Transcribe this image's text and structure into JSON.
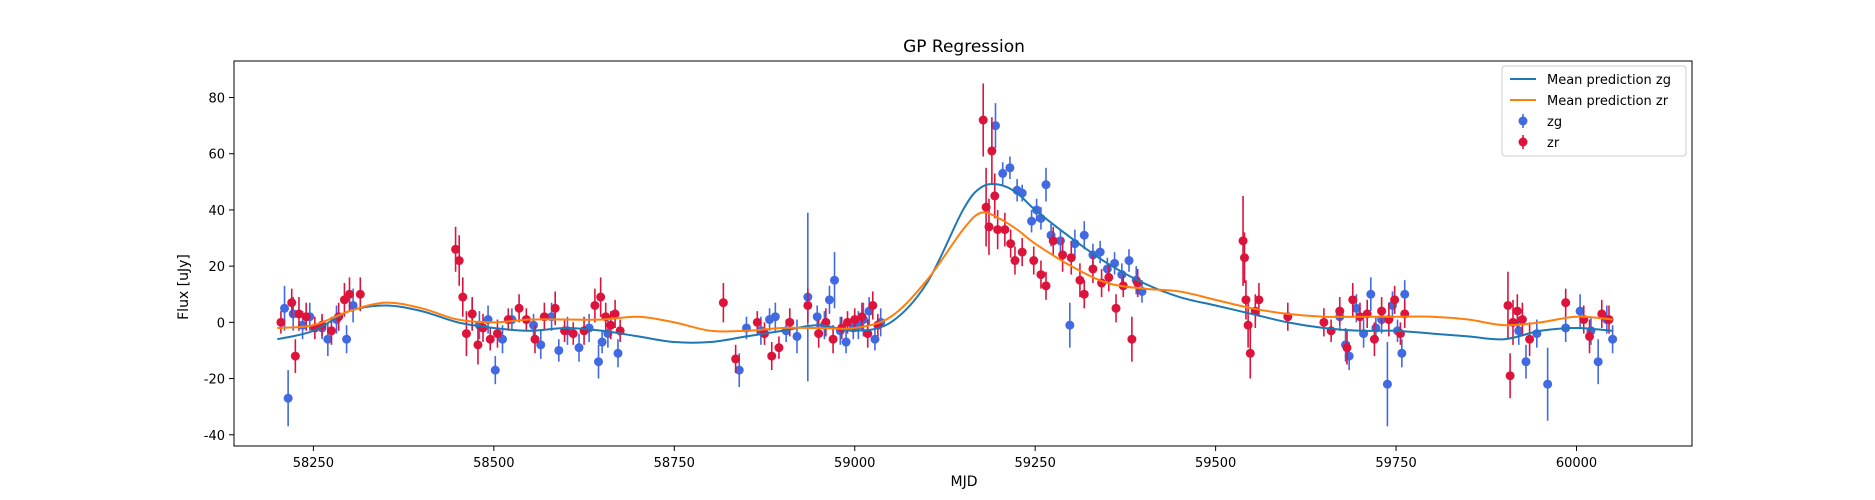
{
  "chart_data": {
    "type": "scatter",
    "title": "GP Regression",
    "xlabel": "MJD",
    "ylabel": "Flux [uJy]",
    "xlim": [
      58140,
      60160
    ],
    "ylim": [
      -44,
      93
    ],
    "xticks": [
      58250,
      58500,
      58750,
      59000,
      59250,
      59500,
      59750,
      60000
    ],
    "yticks": [
      -40,
      -20,
      0,
      20,
      40,
      60,
      80
    ],
    "grid": false,
    "legend_position": "top-right",
    "series": [
      {
        "name": "Mean prediction zg",
        "kind": "line",
        "color": "#1f77b4",
        "x": [
          58200,
          58250,
          58300,
          58350,
          58400,
          58450,
          58500,
          58550,
          58600,
          58650,
          58700,
          58750,
          58800,
          58850,
          58900,
          58950,
          59000,
          59050,
          59100,
          59150,
          59175,
          59200,
          59225,
          59250,
          59300,
          59350,
          59400,
          59450,
          59500,
          59550,
          59600,
          59650,
          59700,
          59750,
          59800,
          59850,
          59900,
          59950,
          60000,
          60050
        ],
        "y": [
          -6,
          -3,
          4,
          6,
          4,
          0,
          -2,
          -3,
          -2,
          -3,
          -5,
          -7,
          -7,
          -5,
          -3,
          -1,
          -3,
          0,
          14,
          40,
          48,
          49,
          46,
          40,
          30,
          21,
          14,
          9,
          6,
          3,
          0,
          -2,
          -3,
          -3,
          -4,
          -5,
          -6,
          -3,
          -2,
          -3
        ]
      },
      {
        "name": "Mean prediction zr",
        "kind": "line",
        "color": "#ff7f0e",
        "x": [
          58200,
          58250,
          58300,
          58350,
          58400,
          58450,
          58500,
          58550,
          58600,
          58650,
          58700,
          58750,
          58800,
          58850,
          58900,
          58950,
          59000,
          59050,
          59100,
          59150,
          59175,
          59200,
          59225,
          59250,
          59300,
          59350,
          59400,
          59450,
          59500,
          59550,
          59600,
          59650,
          59700,
          59750,
          59800,
          59850,
          59900,
          59950,
          60000,
          60050
        ],
        "y": [
          -2,
          -1,
          4,
          7,
          5,
          1,
          0,
          1,
          1,
          1,
          2,
          0,
          -3,
          -3,
          -2,
          -2,
          -2,
          2,
          15,
          33,
          39,
          37,
          33,
          28,
          20,
          14,
          12,
          11,
          8,
          5,
          3,
          2,
          2,
          2,
          2,
          1,
          -1,
          0,
          2,
          1
        ]
      },
      {
        "name": "zg",
        "kind": "errorbar",
        "color": "#4169e1",
        "points": [
          [
            58210,
            5,
            8
          ],
          [
            58215,
            -27,
            10
          ],
          [
            58222,
            3,
            6
          ],
          [
            58235,
            -1,
            5
          ],
          [
            58245,
            2,
            5
          ],
          [
            58262,
            -2,
            4
          ],
          [
            58270,
            -6,
            6
          ],
          [
            58282,
            1,
            5
          ],
          [
            58296,
            -6,
            5
          ],
          [
            58305,
            6,
            6
          ],
          [
            58470,
            3,
            5
          ],
          [
            58480,
            -1,
            5
          ],
          [
            58492,
            1,
            5
          ],
          [
            58502,
            -17,
            5
          ],
          [
            58512,
            -6,
            5
          ],
          [
            58525,
            1,
            4
          ],
          [
            58555,
            -1,
            4
          ],
          [
            58565,
            -8,
            5
          ],
          [
            58580,
            2,
            5
          ],
          [
            58590,
            -10,
            4
          ],
          [
            58602,
            -3,
            5
          ],
          [
            58618,
            -9,
            5
          ],
          [
            58632,
            -2,
            5
          ],
          [
            58645,
            -14,
            6
          ],
          [
            58650,
            -7,
            4
          ],
          [
            58658,
            -4,
            5
          ],
          [
            58672,
            -11,
            5
          ],
          [
            58840,
            -17,
            6
          ],
          [
            58850,
            -2,
            4
          ],
          [
            58870,
            -3,
            5
          ],
          [
            58882,
            1,
            4
          ],
          [
            58890,
            2,
            5
          ],
          [
            58905,
            -3,
            4
          ],
          [
            58920,
            -5,
            6
          ],
          [
            58935,
            9,
            30
          ],
          [
            58948,
            2,
            4
          ],
          [
            58958,
            -1,
            5
          ],
          [
            58965,
            8,
            5
          ],
          [
            58972,
            15,
            10
          ],
          [
            58980,
            -3,
            5
          ],
          [
            58988,
            -7,
            4
          ],
          [
            58998,
            -2,
            4
          ],
          [
            59005,
            -1,
            5
          ],
          [
            59012,
            1,
            6
          ],
          [
            59020,
            4,
            5
          ],
          [
            59028,
            -6,
            4
          ],
          [
            59036,
            0,
            5
          ],
          [
            59195,
            70,
            8
          ],
          [
            59205,
            53,
            4
          ],
          [
            59215,
            55,
            4
          ],
          [
            59225,
            47,
            4
          ],
          [
            59232,
            46,
            3
          ],
          [
            59245,
            36,
            4
          ],
          [
            59252,
            40,
            4
          ],
          [
            59258,
            37,
            4
          ],
          [
            59265,
            49,
            6
          ],
          [
            59272,
            31,
            4
          ],
          [
            59285,
            29,
            4
          ],
          [
            59298,
            -1,
            8
          ],
          [
            59305,
            28,
            5
          ],
          [
            59318,
            31,
            5
          ],
          [
            59330,
            24,
            4
          ],
          [
            59340,
            25,
            4
          ],
          [
            59350,
            19,
            4
          ],
          [
            59360,
            21,
            4
          ],
          [
            59370,
            17,
            4
          ],
          [
            59380,
            22,
            4
          ],
          [
            59390,
            15,
            5
          ],
          [
            59398,
            11,
            4
          ],
          [
            59672,
            2,
            5
          ],
          [
            59680,
            -8,
            6
          ],
          [
            59685,
            -12,
            5
          ],
          [
            59695,
            5,
            5
          ],
          [
            59705,
            -4,
            5
          ],
          [
            59715,
            10,
            6
          ],
          [
            59722,
            -2,
            4
          ],
          [
            59730,
            1,
            5
          ],
          [
            59738,
            -22,
            15
          ],
          [
            59745,
            6,
            5
          ],
          [
            59752,
            -3,
            4
          ],
          [
            59758,
            -11,
            5
          ],
          [
            59762,
            10,
            5
          ],
          [
            59920,
            -3,
            5
          ],
          [
            59930,
            -14,
            6
          ],
          [
            59945,
            -4,
            5
          ],
          [
            59960,
            -22,
            13
          ],
          [
            59985,
            -2,
            5
          ],
          [
            60005,
            4,
            6
          ],
          [
            60020,
            -3,
            5
          ],
          [
            60030,
            -14,
            8
          ],
          [
            60042,
            1,
            5
          ],
          [
            60050,
            -6,
            5
          ]
        ]
      },
      {
        "name": "zr",
        "kind": "errorbar",
        "color": "#dc143c",
        "points": [
          [
            58205,
            0,
            4
          ],
          [
            58220,
            7,
            5
          ],
          [
            58225,
            -12,
            6
          ],
          [
            58230,
            3,
            6
          ],
          [
            58240,
            2,
            5
          ],
          [
            58252,
            -2,
            4
          ],
          [
            58262,
            -1,
            4
          ],
          [
            58275,
            -3,
            5
          ],
          [
            58285,
            2,
            5
          ],
          [
            58293,
            8,
            6
          ],
          [
            58300,
            10,
            6
          ],
          [
            58315,
            10,
            6
          ],
          [
            58447,
            26,
            8
          ],
          [
            58452,
            22,
            9
          ],
          [
            58457,
            9,
            7
          ],
          [
            58462,
            -4,
            8
          ],
          [
            58470,
            3,
            6
          ],
          [
            58478,
            -8,
            7
          ],
          [
            58485,
            -2,
            5
          ],
          [
            58495,
            -6,
            4
          ],
          [
            58505,
            -4,
            5
          ],
          [
            58520,
            1,
            4
          ],
          [
            58535,
            5,
            5
          ],
          [
            58545,
            1,
            4
          ],
          [
            58557,
            -6,
            5
          ],
          [
            58570,
            2,
            5
          ],
          [
            58585,
            5,
            6
          ],
          [
            58598,
            -3,
            4
          ],
          [
            58610,
            -4,
            4
          ],
          [
            58625,
            -3,
            5
          ],
          [
            58640,
            6,
            6
          ],
          [
            58648,
            9,
            7
          ],
          [
            58655,
            2,
            5
          ],
          [
            58662,
            -1,
            5
          ],
          [
            58668,
            3,
            5
          ],
          [
            58675,
            -3,
            4
          ],
          [
            58818,
            7,
            7
          ],
          [
            58835,
            -13,
            5
          ],
          [
            58865,
            0,
            4
          ],
          [
            58875,
            -4,
            4
          ],
          [
            58885,
            -12,
            5
          ],
          [
            58895,
            -9,
            4
          ],
          [
            58910,
            0,
            5
          ],
          [
            58935,
            6,
            6
          ],
          [
            58950,
            -4,
            5
          ],
          [
            58960,
            0,
            5
          ],
          [
            58970,
            -6,
            5
          ],
          [
            58982,
            -2,
            4
          ],
          [
            58990,
            0,
            4
          ],
          [
            59000,
            1,
            4
          ],
          [
            59010,
            2,
            5
          ],
          [
            59018,
            -4,
            5
          ],
          [
            59025,
            6,
            5
          ],
          [
            59032,
            -1,
            4
          ],
          [
            59178,
            72,
            13
          ],
          [
            59182,
            41,
            14
          ],
          [
            59186,
            34,
            10
          ],
          [
            59190,
            61,
            12
          ],
          [
            59194,
            45,
            8
          ],
          [
            59198,
            33,
            7
          ],
          [
            59208,
            33,
            6
          ],
          [
            59216,
            28,
            5
          ],
          [
            59222,
            22,
            5
          ],
          [
            59232,
            25,
            5
          ],
          [
            59248,
            22,
            5
          ],
          [
            59258,
            17,
            5
          ],
          [
            59265,
            13,
            5
          ],
          [
            59275,
            29,
            5
          ],
          [
            59288,
            24,
            6
          ],
          [
            59300,
            23,
            6
          ],
          [
            59312,
            15,
            6
          ],
          [
            59318,
            10,
            5
          ],
          [
            59330,
            19,
            5
          ],
          [
            59342,
            14,
            5
          ],
          [
            59352,
            16,
            5
          ],
          [
            59362,
            5,
            5
          ],
          [
            59372,
            13,
            4
          ],
          [
            59384,
            -6,
            8
          ],
          [
            59392,
            14,
            5
          ],
          [
            59538,
            29,
            16
          ],
          [
            59540,
            23,
            9
          ],
          [
            59542,
            8,
            7
          ],
          [
            59545,
            -1,
            8
          ],
          [
            59548,
            -11,
            9
          ],
          [
            59555,
            4,
            6
          ],
          [
            59560,
            8,
            6
          ],
          [
            59600,
            2,
            5
          ],
          [
            59650,
            0,
            5
          ],
          [
            59660,
            -3,
            4
          ],
          [
            59672,
            4,
            5
          ],
          [
            59682,
            -9,
            6
          ],
          [
            59690,
            8,
            6
          ],
          [
            59700,
            2,
            5
          ],
          [
            59710,
            3,
            5
          ],
          [
            59720,
            -6,
            6
          ],
          [
            59730,
            4,
            5
          ],
          [
            59740,
            1,
            6
          ],
          [
            59748,
            8,
            5
          ],
          [
            59756,
            -4,
            4
          ],
          [
            59762,
            3,
            5
          ],
          [
            59905,
            6,
            12
          ],
          [
            59908,
            -19,
            8
          ],
          [
            59912,
            0,
            8
          ],
          [
            59918,
            4,
            6
          ],
          [
            59925,
            1,
            6
          ],
          [
            59935,
            -6,
            6
          ],
          [
            59985,
            7,
            5
          ],
          [
            60010,
            1,
            5
          ],
          [
            60018,
            -5,
            6
          ],
          [
            60035,
            3,
            5
          ],
          [
            60045,
            1,
            5
          ]
        ]
      }
    ]
  }
}
